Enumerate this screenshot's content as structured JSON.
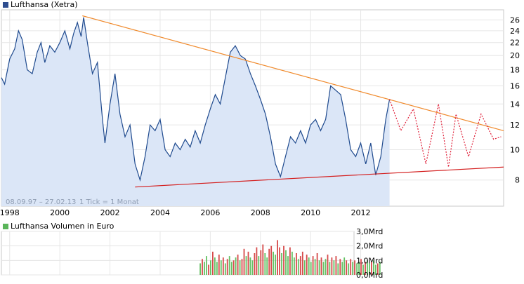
{
  "chart_data": [
    {
      "type": "line",
      "legend": "Lufthansa (Xetra)",
      "legend_color": "#2e4d8f",
      "series_color": "#1f4a8e",
      "fill_color": "#dbe6f7",
      "y_scale": "log",
      "ylim": [
        6.6,
        28
      ],
      "y_ticks": [
        8,
        10,
        12,
        14,
        16,
        18,
        20,
        22,
        24,
        26
      ],
      "xlim": [
        1997.67,
        2017.7
      ],
      "x_ticks": [
        1998,
        2000,
        2002,
        2004,
        2006,
        2008,
        2010,
        2012
      ],
      "date_range_note": "08.09.97 – 27.02.13",
      "tick_note": "1 Tick = 1 Monat",
      "x": [
        1997.67,
        1997.8,
        1998.0,
        1998.2,
        1998.35,
        1998.5,
        1998.7,
        1998.9,
        1999.1,
        1999.25,
        1999.4,
        1999.6,
        1999.8,
        2000.0,
        2000.2,
        2000.4,
        2000.55,
        2000.7,
        2000.85,
        2000.95,
        2001.1,
        2001.3,
        2001.5,
        2001.7,
        2001.8,
        2002.0,
        2002.2,
        2002.4,
        2002.6,
        2002.8,
        2003.0,
        2003.2,
        2003.4,
        2003.6,
        2003.8,
        2004.0,
        2004.2,
        2004.4,
        2004.6,
        2004.8,
        2005.0,
        2005.2,
        2005.4,
        2005.6,
        2005.8,
        2006.0,
        2006.2,
        2006.4,
        2006.6,
        2006.8,
        2007.0,
        2007.2,
        2007.4,
        2007.6,
        2007.8,
        2008.0,
        2008.2,
        2008.4,
        2008.6,
        2008.8,
        2009.0,
        2009.2,
        2009.4,
        2009.6,
        2009.8,
        2010.0,
        2010.2,
        2010.4,
        2010.6,
        2010.8,
        2011.0,
        2011.2,
        2011.4,
        2011.6,
        2011.8,
        2012.0,
        2012.2,
        2012.4,
        2012.6,
        2012.8,
        2013.0,
        2013.15
      ],
      "values": [
        17.0,
        16.2,
        19.5,
        21.0,
        24.0,
        22.5,
        18.0,
        17.5,
        20.5,
        22.0,
        19.0,
        21.5,
        20.5,
        22.0,
        24.0,
        21.0,
        23.5,
        25.5,
        23.0,
        26.5,
        22.0,
        17.5,
        19.0,
        12.5,
        10.5,
        14.0,
        17.5,
        13.0,
        11.0,
        12.0,
        9.0,
        8.0,
        9.5,
        12.0,
        11.5,
        12.5,
        10.0,
        9.5,
        10.5,
        10.0,
        10.8,
        10.2,
        11.5,
        10.5,
        12.0,
        13.5,
        15.0,
        14.0,
        17.0,
        20.5,
        21.5,
        20.0,
        19.5,
        17.5,
        16.0,
        14.5,
        13.0,
        11.0,
        9.0,
        8.2,
        9.5,
        11.0,
        10.5,
        11.5,
        10.5,
        12.0,
        12.5,
        11.5,
        12.5,
        16.0,
        15.5,
        15.0,
        12.5,
        10.0,
        9.5,
        10.5,
        9.0,
        10.5,
        8.3,
        9.5,
        12.5,
        14.5
      ],
      "trendlines": [
        {
          "color": "#f08a2c",
          "from": [
            2000.9,
            26.8
          ],
          "to": [
            2017.7,
            11.5
          ]
        },
        {
          "color": "#d41f1f",
          "from": [
            2003.0,
            7.6
          ],
          "to": [
            2017.7,
            8.8
          ]
        }
      ],
      "projection": {
        "color": "#e0213a",
        "x": [
          2013.15,
          2013.6,
          2014.1,
          2014.6,
          2015.1,
          2015.5,
          2015.8,
          2016.3,
          2016.8,
          2017.3,
          2017.6
        ],
        "values": [
          14.5,
          11.5,
          13.5,
          9.0,
          14.0,
          8.8,
          13.0,
          9.5,
          13.0,
          10.8,
          11.0
        ]
      }
    },
    {
      "type": "bar",
      "legend": "Lufthansa Volumen in Euro",
      "legend_color": "#5ab55a",
      "up_color": "#64c164",
      "down_color": "#d64a4a",
      "ylim": [
        0,
        3.0
      ],
      "y_tick_labels": [
        "3,0Mrd",
        "2,0Mrd",
        "1,0Mrd",
        "0,0Mrd"
      ],
      "y_tick_values": [
        3.0,
        2.0,
        1.0,
        0.0
      ],
      "x_start": 2005.6,
      "x_step": 0.0833,
      "values": [
        0.8,
        1.1,
        0.9,
        1.3,
        0.7,
        1.0,
        1.6,
        1.2,
        0.9,
        1.4,
        1.0,
        1.2,
        0.8,
        1.1,
        1.3,
        0.9,
        1.0,
        1.2,
        1.4,
        1.0,
        1.1,
        1.8,
        1.3,
        1.6,
        1.2,
        1.0,
        1.5,
        1.9,
        1.3,
        1.7,
        2.1,
        1.5,
        1.2,
        1.8,
        2.0,
        1.6,
        1.4,
        2.4,
        1.9,
        1.5,
        2.0,
        1.7,
        1.3,
        1.9,
        1.6,
        1.2,
        1.5,
        1.1,
        1.3,
        1.6,
        1.0,
        1.4,
        1.2,
        0.9,
        1.3,
        1.1,
        1.5,
        1.0,
        1.2,
        0.9,
        1.1,
        1.4,
        0.9,
        1.2,
        1.0,
        1.3,
        0.8,
        1.1,
        0.9,
        1.2,
        1.0,
        0.8,
        1.1,
        0.9,
        1.0,
        0.8,
        0.9,
        1.1,
        0.7,
        0.9,
        1.0,
        0.8,
        0.9,
        1.0,
        0.7,
        0.8,
        0.9
      ],
      "colors": [
        "u",
        "d",
        "u",
        "u",
        "d",
        "u",
        "d",
        "u",
        "u",
        "d",
        "u",
        "d",
        "u",
        "d",
        "u",
        "u",
        "d",
        "u",
        "d",
        "u",
        "d",
        "d",
        "u",
        "d",
        "u",
        "u",
        "d",
        "d",
        "u",
        "d",
        "d",
        "u",
        "u",
        "d",
        "d",
        "u",
        "u",
        "d",
        "d",
        "u",
        "d",
        "u",
        "u",
        "d",
        "u",
        "u",
        "d",
        "u",
        "d",
        "d",
        "u",
        "d",
        "u",
        "u",
        "d",
        "u",
        "d",
        "u",
        "d",
        "u",
        "u",
        "d",
        "u",
        "d",
        "u",
        "d",
        "u",
        "d",
        "u",
        "u",
        "d",
        "u",
        "d",
        "u",
        "d",
        "u",
        "u",
        "d",
        "u",
        "d",
        "u",
        "u",
        "d",
        "u",
        "u",
        "d",
        "u"
      ]
    }
  ]
}
